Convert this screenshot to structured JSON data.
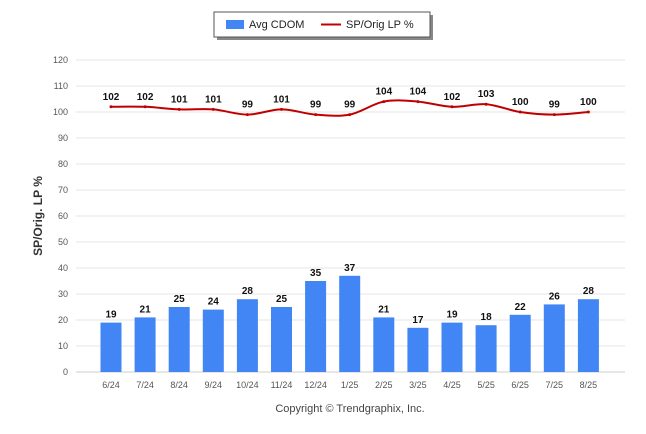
{
  "chart_data": {
    "type": "bar+line",
    "categories": [
      "6/24",
      "7/24",
      "8/24",
      "9/24",
      "10/24",
      "11/24",
      "12/24",
      "1/25",
      "2/25",
      "3/25",
      "4/25",
      "5/25",
      "6/25",
      "7/25",
      "8/25"
    ],
    "series": [
      {
        "name": "Avg CDOM",
        "type": "bar",
        "color": "#4285f4",
        "values": [
          19,
          21,
          25,
          24,
          28,
          25,
          35,
          37,
          21,
          17,
          19,
          18,
          22,
          26,
          28
        ]
      },
      {
        "name": "SP/Orig LP %",
        "type": "line",
        "color": "#c00000",
        "values": [
          102,
          102,
          101,
          101,
          99,
          101,
          99,
          99,
          104,
          104,
          102,
          103,
          100,
          99,
          100
        ]
      }
    ],
    "ylabel": "SP/Orig. LP %",
    "xlabel": "",
    "ylim": [
      0,
      120
    ],
    "yticks": [
      0,
      10,
      20,
      30,
      40,
      50,
      60,
      70,
      80,
      90,
      100,
      110,
      120
    ],
    "grid": true,
    "legend_position": "top-center",
    "colors": {
      "bar": "#4285f4",
      "line": "#c00000",
      "grid": "#e6e6e6"
    }
  },
  "footer": {
    "copyright": "Copyright © Trendgraphix, Inc."
  }
}
